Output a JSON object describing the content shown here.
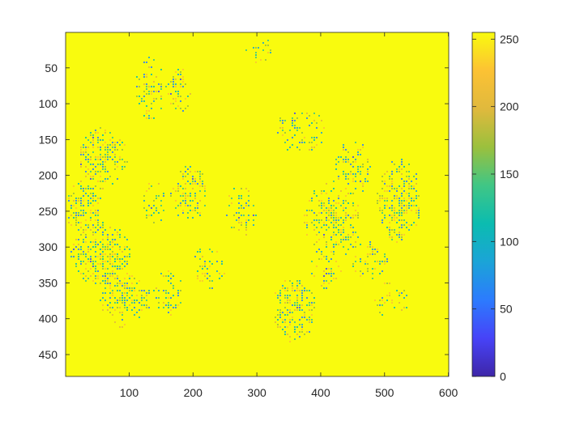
{
  "chart_data": {
    "type": "heatmap",
    "title": "",
    "xlabel": "",
    "ylabel": "",
    "image_size": {
      "cols": 600,
      "rows": 480
    },
    "xlim": [
      0.5,
      600.5
    ],
    "ylim": [
      0.5,
      480.5
    ],
    "y_reversed": true,
    "x_ticks": [
      100,
      200,
      300,
      400,
      500,
      600
    ],
    "x_tick_labels": [
      "100",
      "200",
      "300",
      "400",
      "500",
      "600"
    ],
    "y_ticks": [
      50,
      100,
      150,
      200,
      250,
      300,
      350,
      400,
      450
    ],
    "y_tick_labels": [
      "50",
      "100",
      "150",
      "200",
      "250",
      "300",
      "350",
      "400",
      "450"
    ],
    "colorbar": {
      "colormap": "parula",
      "clim": [
        0,
        255
      ],
      "ticks": [
        0,
        50,
        100,
        150,
        200,
        250
      ],
      "tick_labels": [
        "0",
        "50",
        "100",
        "150",
        "200",
        "250"
      ],
      "position": "right"
    },
    "background_value": 255,
    "colormap_stops": [
      "#3e26a8",
      "#4743f8",
      "#2c7bfe",
      "#1ba4d7",
      "#0bbcb0",
      "#40c685",
      "#9bc03d",
      "#e0b93d",
      "#fcc234",
      "#f9fb0e"
    ],
    "regions": [
      {
        "cx": 135,
        "cy": 80,
        "rx": 25,
        "ry": 45,
        "density": 0.35
      },
      {
        "cx": 180,
        "cy": 80,
        "rx": 18,
        "ry": 35,
        "density": 0.4
      },
      {
        "cx": 60,
        "cy": 175,
        "rx": 40,
        "ry": 45,
        "density": 0.5
      },
      {
        "cx": 30,
        "cy": 245,
        "rx": 28,
        "ry": 45,
        "density": 0.45
      },
      {
        "cx": 55,
        "cy": 310,
        "rx": 48,
        "ry": 45,
        "density": 0.55
      },
      {
        "cx": 95,
        "cy": 375,
        "rx": 40,
        "ry": 40,
        "density": 0.45
      },
      {
        "cx": 160,
        "cy": 365,
        "rx": 25,
        "ry": 35,
        "density": 0.35
      },
      {
        "cx": 140,
        "cy": 240,
        "rx": 22,
        "ry": 30,
        "density": 0.3
      },
      {
        "cx": 195,
        "cy": 225,
        "rx": 30,
        "ry": 40,
        "density": 0.45
      },
      {
        "cx": 280,
        "cy": 250,
        "rx": 30,
        "ry": 35,
        "density": 0.25
      },
      {
        "cx": 225,
        "cy": 330,
        "rx": 28,
        "ry": 30,
        "density": 0.3
      },
      {
        "cx": 300,
        "cy": 25,
        "rx": 30,
        "ry": 20,
        "density": 0.25
      },
      {
        "cx": 370,
        "cy": 140,
        "rx": 40,
        "ry": 35,
        "density": 0.25
      },
      {
        "cx": 450,
        "cy": 190,
        "rx": 35,
        "ry": 40,
        "density": 0.3
      },
      {
        "cx": 420,
        "cy": 265,
        "rx": 45,
        "ry": 55,
        "density": 0.45
      },
      {
        "cx": 525,
        "cy": 235,
        "rx": 35,
        "ry": 60,
        "density": 0.5
      },
      {
        "cx": 480,
        "cy": 320,
        "rx": 30,
        "ry": 30,
        "density": 0.25
      },
      {
        "cx": 360,
        "cy": 390,
        "rx": 35,
        "ry": 45,
        "density": 0.55
      },
      {
        "cx": 515,
        "cy": 375,
        "rx": 35,
        "ry": 25,
        "density": 0.2
      },
      {
        "cx": 410,
        "cy": 330,
        "rx": 25,
        "ry": 30,
        "density": 0.3
      }
    ]
  }
}
